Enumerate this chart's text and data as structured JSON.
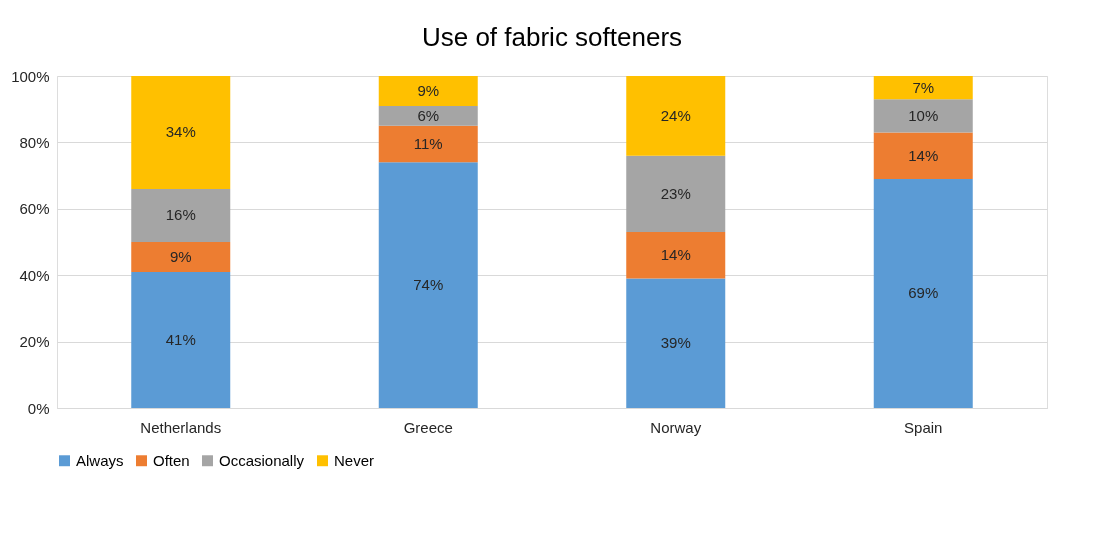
{
  "chart_data": {
    "type": "bar",
    "title": "Use of fabric softeners",
    "stacked": true,
    "categories": [
      "Netherlands",
      "Greece",
      "Norway",
      "Spain"
    ],
    "series": [
      {
        "name": "Always",
        "color": "#5b9bd5",
        "values": [
          41,
          74,
          39,
          69
        ],
        "value_labels": [
          "41%",
          "74%",
          "39%",
          "69%"
        ]
      },
      {
        "name": "Often",
        "color": "#ed7d31",
        "values": [
          9,
          11,
          14,
          14
        ],
        "value_labels": [
          "9%",
          "11%",
          "14%",
          "14%"
        ]
      },
      {
        "name": "Occasionally",
        "color": "#a5a5a5",
        "values": [
          16,
          6,
          23,
          10
        ],
        "value_labels": [
          "16%",
          "6%",
          "23%",
          "10%"
        ]
      },
      {
        "name": "Never",
        "color": "#ffc000",
        "values": [
          34,
          9,
          24,
          7
        ],
        "value_labels": [
          "34%",
          "9%",
          "24%",
          "7%"
        ]
      }
    ],
    "ylim": [
      0,
      100
    ],
    "yticks": [
      {
        "value": 0,
        "label": "0%"
      },
      {
        "value": 20,
        "label": "20%"
      },
      {
        "value": 40,
        "label": "40%"
      },
      {
        "value": 60,
        "label": "60%"
      },
      {
        "value": 80,
        "label": "80%"
      },
      {
        "value": 100,
        "label": "100%"
      }
    ],
    "grid": "y",
    "legend": "bottom"
  }
}
